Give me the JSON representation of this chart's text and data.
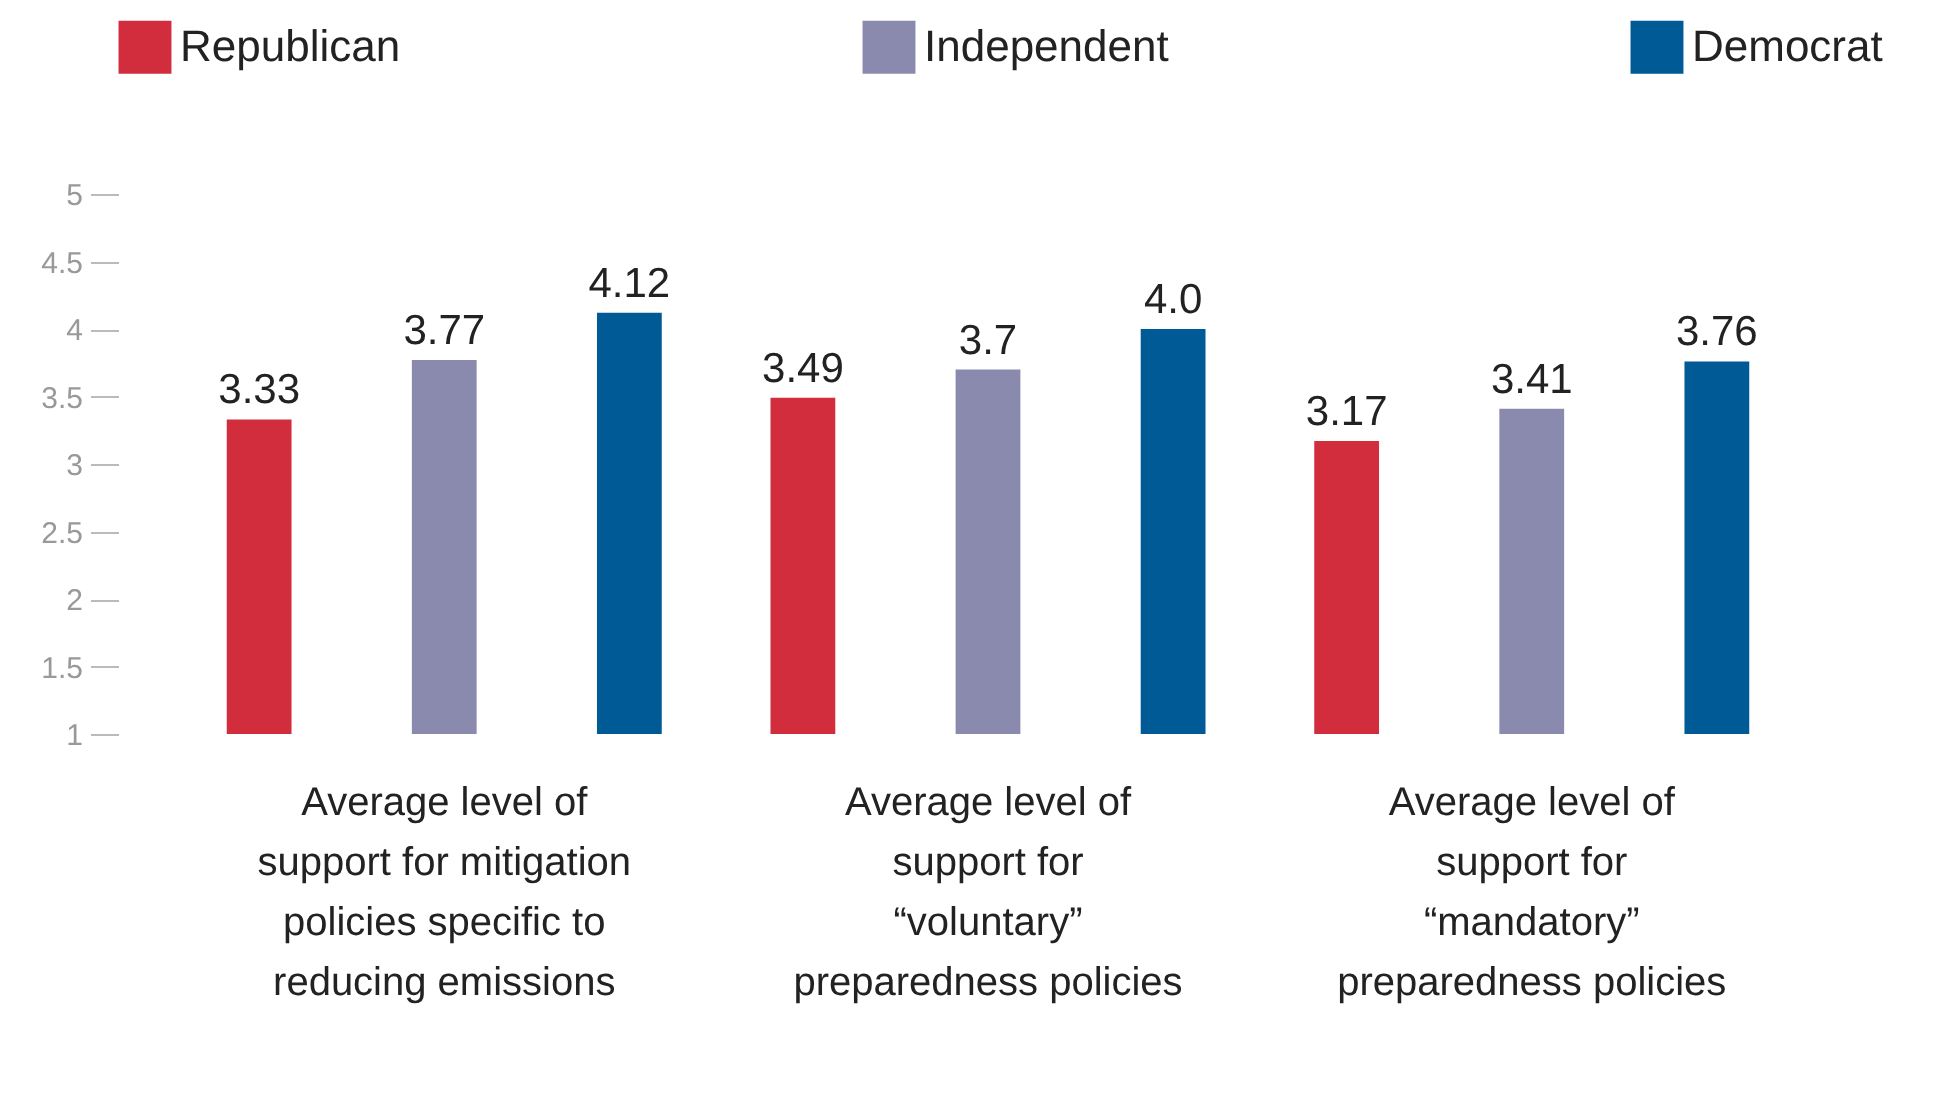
{
  "chart_data": {
    "type": "bar",
    "categories": [
      "Average level of support for mitigation policies specific to reducing emissions",
      "Average level of support for “voluntary” preparedness policies",
      "Average level of support for “mandatory” preparedness policies"
    ],
    "series": [
      {
        "name": "Republican",
        "color": "#d12d3c",
        "values": [
          3.33,
          3.49,
          3.17
        ],
        "value_labels": [
          "3.33",
          "3.49",
          "3.17"
        ]
      },
      {
        "name": "Independent",
        "color": "#8a8aae",
        "values": [
          3.77,
          3.7,
          3.41
        ],
        "value_labels": [
          "3.77",
          "3.7",
          "3.41"
        ]
      },
      {
        "name": "Democrat",
        "color": "#005a96",
        "values": [
          4.12,
          4.0,
          3.76
        ],
        "value_labels": [
          "4.12",
          "4.0",
          "3.76"
        ]
      }
    ],
    "ylim": [
      1,
      5
    ],
    "yticks": [
      1,
      1.5,
      2,
      2.5,
      3,
      3.5,
      4,
      4.5,
      5
    ],
    "legend": "top",
    "grid": false
  }
}
